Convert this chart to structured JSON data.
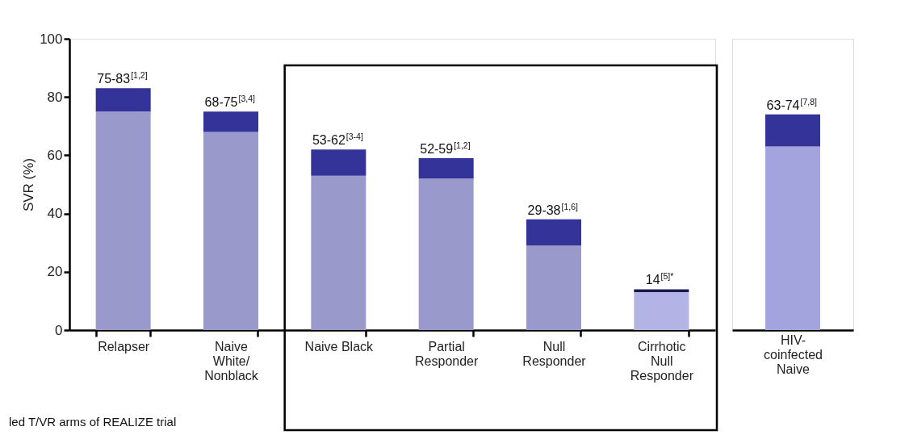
{
  "chart_data": [
    {
      "type": "bar",
      "stacked": true,
      "ylabel": "SVR (%)",
      "categories": [
        "Relapser",
        "Naive White/Nonblack",
        "Naive Black",
        "Partial Responder",
        "Null Responder",
        "Cirrhotic Null Responder"
      ],
      "series": [
        {
          "colors": [
            "#9999cc",
            "#9999cc",
            "#9999cc",
            "#9999cc",
            "#9999cc",
            "#b3b3e6"
          ],
          "values": [
            75,
            68,
            53,
            52,
            29,
            13
          ]
        },
        {
          "colors": [
            "#333399",
            "#333399",
            "#333399",
            "#333399",
            "#333399",
            "#1a1a50"
          ],
          "values": [
            8,
            7,
            9,
            7,
            9,
            1
          ]
        }
      ],
      "totals": [
        "75-83$^{[1,2]}$",
        "68-75$^{[3,4]}$",
        "53-62$^{[3-4]}$",
        "52-59$^{[1,2]}$",
        "29-38$^{[1,6]}$",
        "14$^{[5]*}$"
      ],
      "ylim": [
        0,
        100
      ],
      "yticks": [
        0,
        20,
        40,
        60,
        80,
        100
      ],
      "annotations": [
        "led T/VR arms of REALIZE trial"
      ]
    },
    {
      "type": "bar",
      "stacked": true,
      "categories": [
        "HIV-coinfected Naive"
      ],
      "series": [
        {
          "colors": [
            "#a3a3dd"
          ],
          "values": [
            63
          ]
        },
        {
          "colors": [
            "#333399"
          ],
          "values": [
            11
          ]
        }
      ],
      "totals": [
        "63-74$^{[7,8]}$"
      ],
      "ylim": [
        0,
        100
      ],
      "tick_labels": "x"
    }
  ]
}
